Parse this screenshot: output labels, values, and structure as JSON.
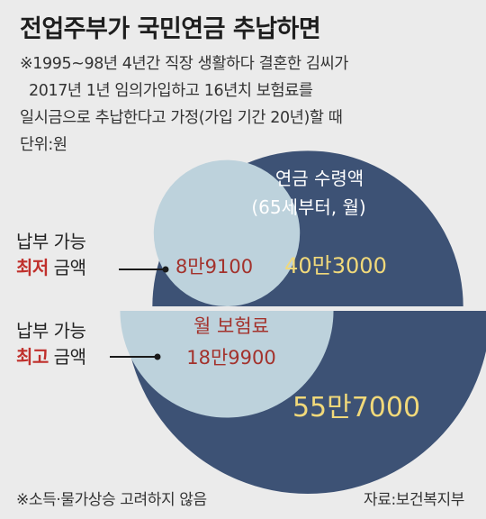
{
  "title": "전업주부가 국민연금 추납하면",
  "notes": [
    "※1995~98년 4년간 직장 생활하다 결혼한 김씨가",
    "2017년 1년 임의가입하고 16년치 보험료를",
    "일시금으로 추납한다고 가정(가입 기간 20년)할 때",
    "단위:원"
  ],
  "labels": {
    "pension_title_1": "연금 수령액",
    "pension_title_2": "(65세부터, 월)",
    "premium_title": "월 보험료",
    "min_label_1": "납부 가능",
    "min_label_2_highlight": "최저",
    "min_label_2_rest": " 금액",
    "max_label_1": "납부 가능",
    "max_label_2_highlight": "최고",
    "max_label_2_rest": " 금액"
  },
  "footer": {
    "note": "※소득·물가상승 고려하지 않음",
    "source": "자료:보건복지부"
  },
  "colors": {
    "pension": "#3d5275",
    "premium": "#bdd2dc",
    "text_white": "#ffffff",
    "value_yellow": "#f1d97a",
    "value_red": "#a3322c",
    "highlight": "#c0302c"
  },
  "chart_data": {
    "type": "area",
    "categories": [
      "납부 가능 최저 금액",
      "납부 가능 최고 금액"
    ],
    "series": [
      {
        "name": "월 보험료",
        "values": [
          89100,
          189900
        ],
        "labels": [
          "8만9100",
          "18만9900"
        ]
      },
      {
        "name": "연금 수령액 (65세부터, 월)",
        "values": [
          403000,
          557000
        ],
        "labels": [
          "40만3000",
          "55만7000"
        ]
      }
    ],
    "unit": "원"
  }
}
